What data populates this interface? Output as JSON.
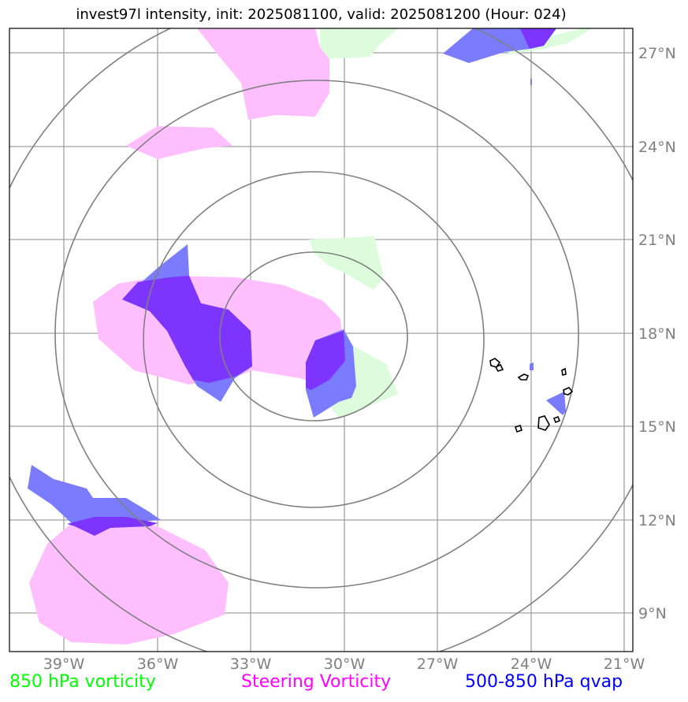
{
  "title": "invest97l intensity, init: 2025081100, valid: 2025081200 (Hour: 024)",
  "lat_ticks": [
    "27°N",
    "24°N",
    "21°N",
    "18°N",
    "15°N",
    "12°N",
    "9°N"
  ],
  "lon_ticks": [
    "39°W",
    "36°W",
    "33°W",
    "30°W",
    "27°W",
    "24°W",
    "21°W"
  ],
  "legend": [
    {
      "label": "850 hPa vorticity",
      "color": "#00ff00"
    },
    {
      "label": "Steering Vorticity",
      "color": "#ff00ff"
    },
    {
      "label": "500-850 hPa qvap",
      "color": "#0000ff"
    }
  ],
  "fill_colors": {
    "vorticity_850": "#dcfcdc",
    "steering_vorticity": "#ffbefe",
    "qvap": "#7a7bfd",
    "overlap": "#7d35fd"
  },
  "rings_center": {
    "lat": 18.0,
    "lon": -30.9
  },
  "map_extent": {
    "lon_min": -40.8,
    "lon_max": -20.8,
    "lat_min": 7.9,
    "lat_max": 27.9
  }
}
